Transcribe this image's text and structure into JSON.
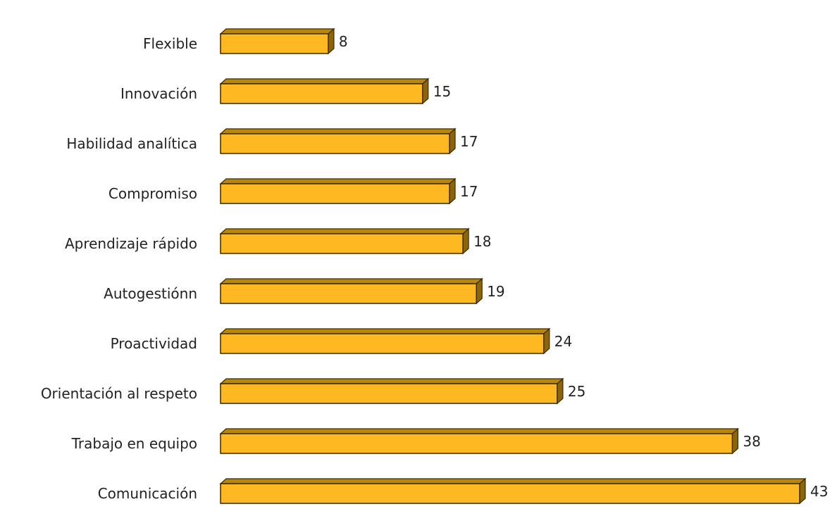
{
  "chart_data": {
    "type": "bar",
    "orientation": "horizontal",
    "categories": [
      "Flexible",
      "Innovación",
      "Habilidad analítica",
      "Compromiso",
      "Aprendizaje rápido",
      "Autogestiónn",
      "Proactividad",
      "Orientación al respeto",
      "Trabajo en equipo",
      "Comunicación"
    ],
    "values": [
      8,
      15,
      17,
      17,
      18,
      19,
      24,
      25,
      38,
      43
    ],
    "value_labels": [
      "8",
      "15",
      "17",
      "17",
      "18",
      "19",
      "24",
      "25",
      "38",
      "43"
    ],
    "title": "",
    "xlabel": "",
    "ylabel": "",
    "xlim": [
      0,
      43
    ],
    "grid": false,
    "legend": "none",
    "style": "3d",
    "colors": {
      "bar_front": "#FDB822",
      "bar_top": "#B8860B",
      "bar_side": "#8B6508",
      "bar_stroke": "#3a2a00"
    }
  }
}
